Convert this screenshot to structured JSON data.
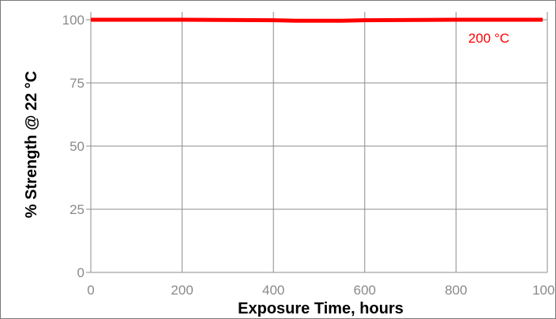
{
  "chart_data": {
    "type": "line",
    "title": "",
    "xlabel": "Exposure Time, hours",
    "ylabel": "% Strength @ 22 °C",
    "xlim": [
      0,
      1000
    ],
    "ylim": [
      0,
      100
    ],
    "xticks": [
      0,
      200,
      400,
      600,
      800,
      1000
    ],
    "yticks": [
      0,
      25,
      50,
      75,
      100
    ],
    "grid": true,
    "legend": "none",
    "series": [
      {
        "name": "200 °C",
        "color": "#ff0000",
        "x": [
          0,
          200,
          400,
          450,
          550,
          600,
          800,
          990
        ],
        "y": [
          100,
          100,
          99.8,
          99.6,
          99.6,
          99.8,
          100,
          100
        ]
      }
    ]
  }
}
